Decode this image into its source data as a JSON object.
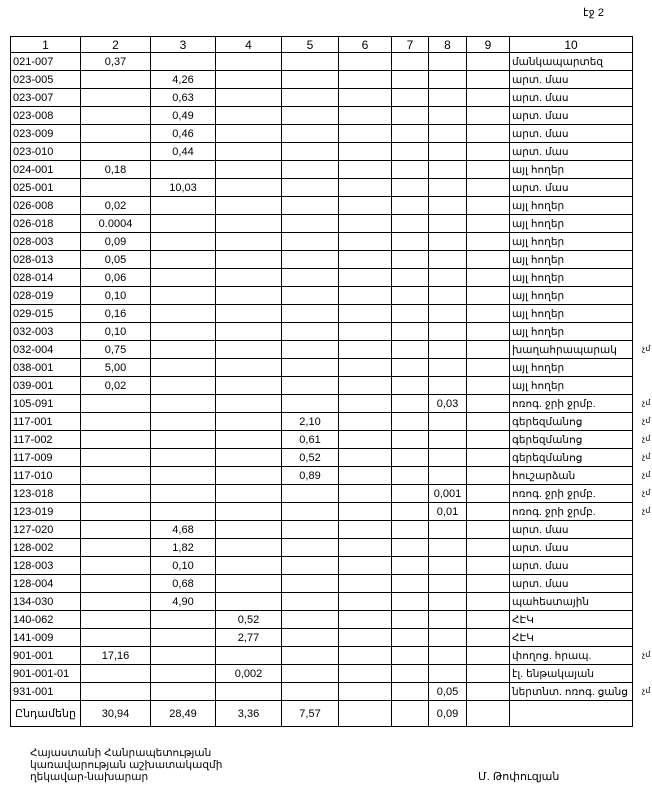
{
  "page_label": "էջ 2",
  "headers": [
    "1",
    "2",
    "3",
    "4",
    "5",
    "6",
    "7",
    "8",
    "9",
    "10"
  ],
  "rows": [
    [
      "021-007",
      "0,37",
      "",
      "",
      "",
      "",
      "",
      "",
      "",
      "մանկապարտեզ",
      ""
    ],
    [
      "023-005",
      "",
      "4,26",
      "",
      "",
      "",
      "",
      "",
      "",
      "արտ. մաս",
      ""
    ],
    [
      "023-007",
      "",
      "0,63",
      "",
      "",
      "",
      "",
      "",
      "",
      "արտ. մաս",
      ""
    ],
    [
      "023-008",
      "",
      "0,49",
      "",
      "",
      "",
      "",
      "",
      "",
      "արտ. մաս",
      ""
    ],
    [
      "023-009",
      "",
      "0,46",
      "",
      "",
      "",
      "",
      "",
      "",
      "արտ. մաս",
      ""
    ],
    [
      "023-010",
      "",
      "0,44",
      "",
      "",
      "",
      "",
      "",
      "",
      "արտ. մաս",
      ""
    ],
    [
      "024-001",
      "0,18",
      "",
      "",
      "",
      "",
      "",
      "",
      "",
      "այլ հողեր",
      ""
    ],
    [
      "025-001",
      "",
      "10,03",
      "",
      "",
      "",
      "",
      "",
      "",
      "արտ. մաս",
      ""
    ],
    [
      "026-008",
      "0,02",
      "",
      "",
      "",
      "",
      "",
      "",
      "",
      "այլ հողեր",
      ""
    ],
    [
      "026-018",
      "0.0004",
      "",
      "",
      "",
      "",
      "",
      "",
      "",
      "այլ հողեր",
      ""
    ],
    [
      "028-003",
      "0,09",
      "",
      "",
      "",
      "",
      "",
      "",
      "",
      "այլ հողեր",
      ""
    ],
    [
      "028-013",
      "0,05",
      "",
      "",
      "",
      "",
      "",
      "",
      "",
      "այլ հողեր",
      ""
    ],
    [
      "028-014",
      "0,06",
      "",
      "",
      "",
      "",
      "",
      "",
      "",
      "այլ հողեր",
      ""
    ],
    [
      "028-019",
      "0,10",
      "",
      "",
      "",
      "",
      "",
      "",
      "",
      "այլ հողեր",
      ""
    ],
    [
      "029-015",
      "0,16",
      "",
      "",
      "",
      "",
      "",
      "",
      "",
      "այլ հողեր",
      ""
    ],
    [
      "032-003",
      "0,10",
      "",
      "",
      "",
      "",
      "",
      "",
      "",
      "այլ հողեր",
      ""
    ],
    [
      "032-004",
      "0,75",
      "",
      "",
      "",
      "",
      "",
      "",
      "",
      "խաղահրապարակ",
      "չմ"
    ],
    [
      "038-001",
      "5,00",
      "",
      "",
      "",
      "",
      "",
      "",
      "",
      "այլ հողեր",
      ""
    ],
    [
      "039-001",
      "0,02",
      "",
      "",
      "",
      "",
      "",
      "",
      "",
      "այլ հողեր",
      ""
    ],
    [
      "105-091",
      "",
      "",
      "",
      "",
      "",
      "",
      "0,03",
      "",
      "ոռոգ. ջրի ջրմբ.",
      "չմ"
    ],
    [
      "117-001",
      "",
      "",
      "",
      "2,10",
      "",
      "",
      "",
      "",
      "գերեզմանոց",
      "չմ"
    ],
    [
      "117-002",
      "",
      "",
      "",
      "0,61",
      "",
      "",
      "",
      "",
      "գերեզմանոց",
      "չմ"
    ],
    [
      "117-009",
      "",
      "",
      "",
      "0,52",
      "",
      "",
      "",
      "",
      "գերեզմանոց",
      "չմ"
    ],
    [
      "117-010",
      "",
      "",
      "",
      "0,89",
      "",
      "",
      "",
      "",
      "հուշարձան",
      "չմ"
    ],
    [
      "123-018",
      "",
      "",
      "",
      "",
      "",
      "",
      "0,001",
      "",
      "ոռոգ. ջրի ջրմբ.",
      "չմ"
    ],
    [
      "123-019",
      "",
      "",
      "",
      "",
      "",
      "",
      "0,01",
      "",
      "ոռոգ. ջրի ջրմբ.",
      "չմ"
    ],
    [
      "127-020",
      "",
      "4,68",
      "",
      "",
      "",
      "",
      "",
      "",
      "արտ. մաս",
      ""
    ],
    [
      "128-002",
      "",
      "1,82",
      "",
      "",
      "",
      "",
      "",
      "",
      "արտ. մաս",
      ""
    ],
    [
      "128-003",
      "",
      "0,10",
      "",
      "",
      "",
      "",
      "",
      "",
      "արտ. մաս",
      ""
    ],
    [
      "128-004",
      "",
      "0,68",
      "",
      "",
      "",
      "",
      "",
      "",
      "արտ. մաս",
      ""
    ],
    [
      "134-030",
      "",
      "4,90",
      "",
      "",
      "",
      "",
      "",
      "",
      "պահեստային",
      ""
    ],
    [
      "140-062",
      "",
      "",
      "0,52",
      "",
      "",
      "",
      "",
      "",
      "ՀԷԿ",
      ""
    ],
    [
      "141-009",
      "",
      "",
      "2,77",
      "",
      "",
      "",
      "",
      "",
      "ՀԷԿ",
      ""
    ],
    [
      "901-001",
      "17,16",
      "",
      "",
      "",
      "",
      "",
      "",
      "",
      "փողոց. հրապ.",
      "չմ"
    ],
    [
      "901-001-01",
      "",
      "",
      "0,002",
      "",
      "",
      "",
      "",
      "",
      "էլ. ենթակայան",
      ""
    ],
    [
      "931-001",
      "",
      "",
      "",
      "",
      "",
      "",
      "0,05",
      "",
      "ներտնտ. ոռոգ. ցանց",
      "չմ"
    ]
  ],
  "total": [
    "Ընդամենը",
    "30,94",
    "28,49",
    "3,36",
    "7,57",
    "",
    "",
    "0,09",
    "",
    ""
  ],
  "footer": {
    "lines": [
      "Հայաստանի Հանրապետության",
      "կառավարության աշխատակազմի",
      "ղեկավար-նախարար"
    ],
    "signatory": "Մ. Թոփուզյան"
  }
}
